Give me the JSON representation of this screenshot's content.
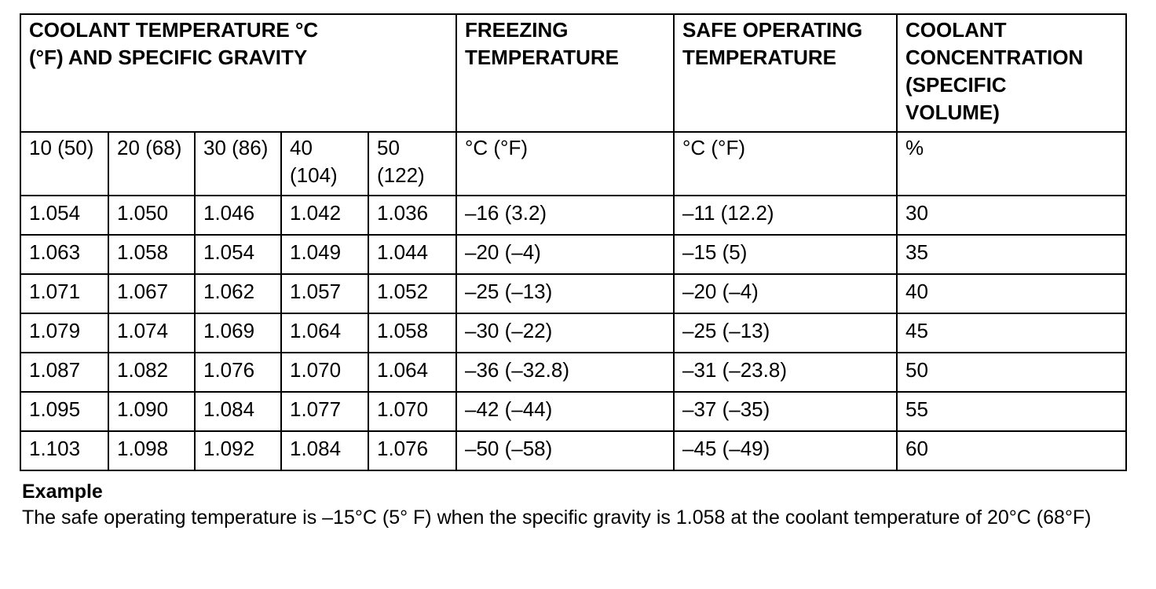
{
  "table": {
    "headers": {
      "coolant_temp_sg": "COOLANT TEMPERATURE °C (°F) AND SPECIFIC GRAVITY",
      "freezing": "FREEZING TEMPERATURE",
      "safe_operating": "SAFE OPERATING TEMPERATURE",
      "concentration": "COOLANT CONCENTRATION (SPECIFIC VOLUME)"
    },
    "subheaders": [
      "10 (50)",
      "20 (68)",
      "30 (86)",
      "40 (104)",
      "50 (122)",
      "°C (°F)",
      "°C (°F)",
      "%"
    ],
    "rows": [
      [
        "1.054",
        "1.050",
        "1.046",
        "1.042",
        "1.036",
        "–16 (3.2)",
        "–11 (12.2)",
        "30"
      ],
      [
        "1.063",
        "1.058",
        "1.054",
        "1.049",
        "1.044",
        "–20 (–4)",
        "–15 (5)",
        "35"
      ],
      [
        "1.071",
        "1.067",
        "1.062",
        "1.057",
        "1.052",
        "–25 (–13)",
        "–20 (–4)",
        "40"
      ],
      [
        "1.079",
        "1.074",
        "1.069",
        "1.064",
        "1.058",
        "–30 (–22)",
        "–25 (–13)",
        "45"
      ],
      [
        "1.087",
        "1.082",
        "1.076",
        "1.070",
        "1.064",
        "–36 (–32.8)",
        "–31 (–23.8)",
        "50"
      ],
      [
        "1.095",
        "1.090",
        "1.084",
        "1.077",
        "1.070",
        "–42 (–44)",
        "–37 (–35)",
        "55"
      ],
      [
        "1.103",
        "1.098",
        "1.092",
        "1.084",
        "1.076",
        "–50 (–58)",
        "–45 (–49)",
        "60"
      ]
    ]
  },
  "example": {
    "title": "Example",
    "text": "The safe operating temperature is –15°C (5° F) when the specific gravity is 1.058 at the coolant temperature of 20°C (68°F)"
  }
}
